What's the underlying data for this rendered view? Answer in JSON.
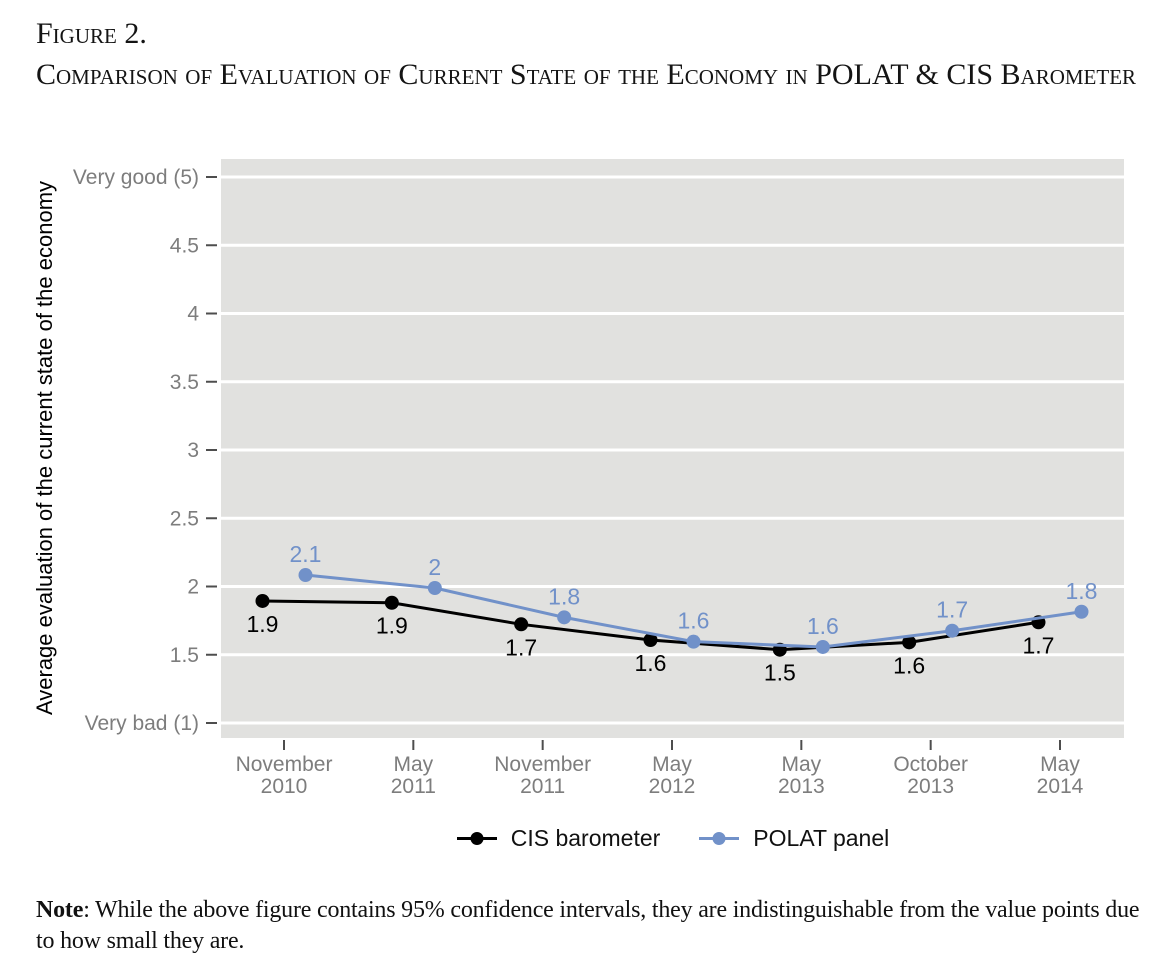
{
  "figure": {
    "label": "Figure 2.",
    "title": "Comparison of Evaluation of Current State of the Economy in POLAT & CIS Barometer"
  },
  "note": {
    "label": "Note",
    "text": ": While the above figure contains 95% confidence intervals, they are indistinguishable from the value points due to how small they are."
  },
  "legend": {
    "items": [
      {
        "label": "CIS barometer",
        "color": "#000000"
      },
      {
        "label": "POLAT panel",
        "color": "#7191c9"
      }
    ]
  },
  "colors": {
    "panel_background": "#e1e1df",
    "gridline": "#ffffff",
    "tick_mark": "#4d4d4d",
    "tick_text": "#7d7d7d",
    "cis_black": "#000000",
    "polat_blue": "#7191c9"
  },
  "chart_data": {
    "type": "line",
    "title": "Comparison of Evaluation of Current State of the Economy in POLAT & CIS Barometer",
    "xlabel": "",
    "ylabel": "Average evaluation of the current state of the economy",
    "ylim": [
      1,
      5
    ],
    "grid": "major-horizontal-only",
    "legend_position": "bottom",
    "background": "#e1e1df",
    "categories": [
      {
        "line1": "November",
        "line2": "2010"
      },
      {
        "line1": "May",
        "line2": "2011"
      },
      {
        "line1": "November",
        "line2": "2011"
      },
      {
        "line1": "May",
        "line2": "2012"
      },
      {
        "line1": "May",
        "line2": "2013"
      },
      {
        "line1": "October",
        "line2": "2013"
      },
      {
        "line1": "May",
        "line2": "2014"
      }
    ],
    "yticks": [
      {
        "value": 5,
        "label": "Very good (5)"
      },
      {
        "value": 4.5,
        "label": "4.5"
      },
      {
        "value": 4,
        "label": "4"
      },
      {
        "value": 3.5,
        "label": "3.5"
      },
      {
        "value": 3,
        "label": "3"
      },
      {
        "value": 2.5,
        "label": "2.5"
      },
      {
        "value": 2,
        "label": "2"
      },
      {
        "value": 1.5,
        "label": "1.5"
      },
      {
        "value": 1,
        "label": "Very bad (1)"
      }
    ],
    "series": [
      {
        "name": "CIS barometer",
        "color": "#000000",
        "values": [
          1.9,
          1.9,
          1.7,
          1.6,
          1.5,
          1.6,
          1.7
        ],
        "labels": [
          "1.9",
          "1.9",
          "1.7",
          "1.6",
          "1.5",
          "1.6",
          "1.7"
        ],
        "plotted": [
          1.894,
          1.881,
          1.723,
          1.608,
          1.537,
          1.591,
          1.738
        ],
        "x_offset": -21.5,
        "label_side": "below"
      },
      {
        "name": "POLAT panel",
        "color": "#7191c9",
        "values": [
          2.1,
          2.0,
          1.8,
          1.6,
          1.6,
          1.7,
          1.8
        ],
        "labels": [
          "2.1",
          "2",
          "1.8",
          "1.6",
          "1.6",
          "1.7",
          "1.8"
        ],
        "plotted": [
          2.084,
          1.989,
          1.774,
          1.596,
          1.557,
          1.676,
          1.815
        ],
        "x_offset": 21.5,
        "label_side": "above"
      }
    ]
  }
}
